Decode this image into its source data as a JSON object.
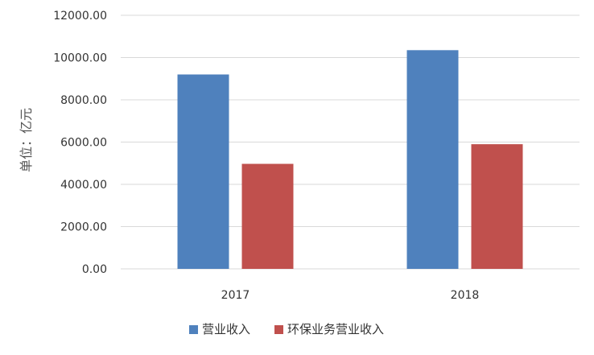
{
  "chart_data": {
    "type": "bar",
    "ylabel": "单位：亿元",
    "xlabel": "",
    "title": "",
    "categories": [
      "2017",
      "2018"
    ],
    "series": [
      {
        "name": "营业收入",
        "color": "#4f81bd",
        "values": [
          9200,
          10350
        ]
      },
      {
        "name": "环保业务营业收入",
        "color": "#c0504d",
        "values": [
          4970,
          5900
        ]
      }
    ],
    "ylim": [
      0,
      12000
    ],
    "yticks": [
      "0.00",
      "2000.00",
      "4000.00",
      "6000.00",
      "8000.00",
      "10000.00",
      "12000.00"
    ],
    "grid": true,
    "legend_position": "bottom-center"
  }
}
